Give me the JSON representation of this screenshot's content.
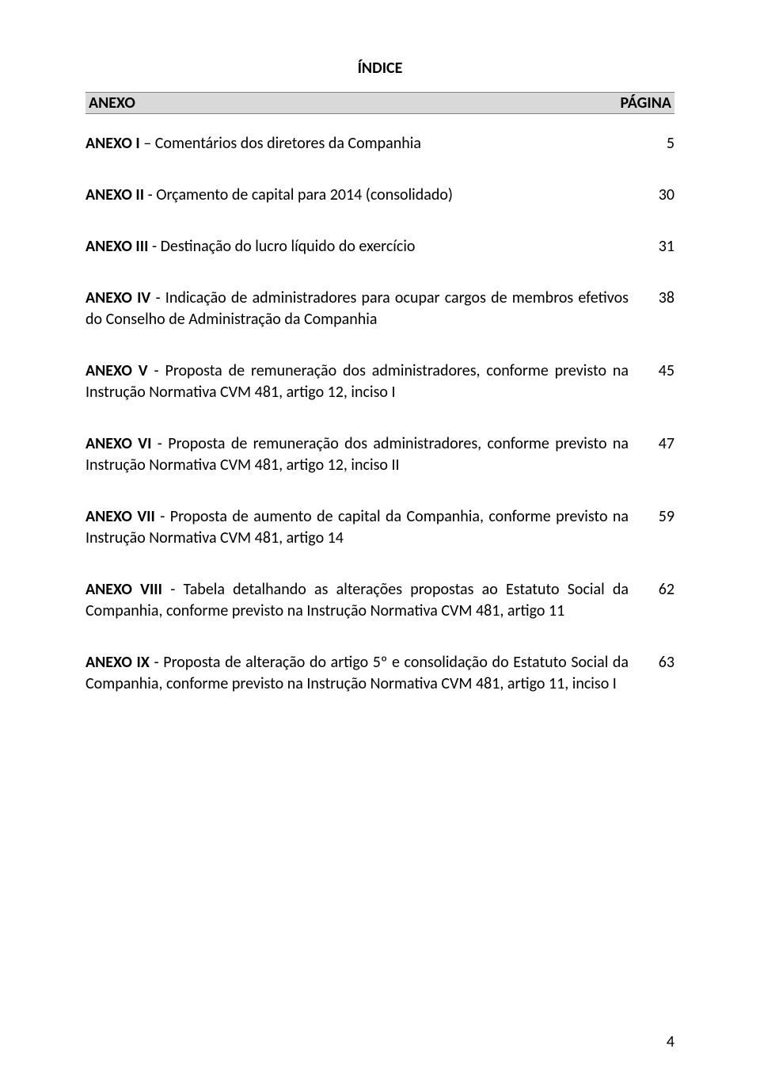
{
  "title": "ÍNDICE",
  "header": {
    "left": "ANEXO",
    "right": "PÁGINA"
  },
  "entries": [
    {
      "bold": "ANEXO I",
      "rest": " – Comentários dos diretores da Companhia",
      "page": "5"
    },
    {
      "bold": "ANEXO II",
      "rest": " - Orçamento de capital para 2014 (consolidado)",
      "page": "30"
    },
    {
      "bold": "ANEXO III",
      "rest": " - Destinação do lucro líquido do exercício",
      "page": "31"
    },
    {
      "bold": "ANEXO IV",
      "rest": " - Indicação de administradores para ocupar cargos de membros efetivos do Conselho de Administração da Companhia",
      "page": "38"
    },
    {
      "bold": "ANEXO V",
      "rest": " - Proposta de remuneração dos administradores, conforme previsto na Instrução Normativa CVM 481, artigo 12, inciso I",
      "page": "45"
    },
    {
      "bold": "ANEXO VI",
      "rest": " - Proposta de remuneração dos administradores, conforme previsto na Instrução Normativa CVM 481, artigo 12, inciso II",
      "page": "47"
    },
    {
      "bold": "ANEXO VII",
      "rest": " - Proposta de aumento de capital da Companhia, conforme previsto na Instrução Normativa CVM 481, artigo 14",
      "page": "59"
    },
    {
      "bold": "ANEXO VIII",
      "rest": " - Tabela detalhando as alterações propostas ao Estatuto Social da Companhia, conforme previsto na Instrução Normativa CVM 481, artigo 11",
      "page": "62"
    },
    {
      "bold": "ANEXO IX",
      "rest": " - Proposta de alteração do artigo 5º e consolidação do Estatuto Social da Companhia, conforme previsto na Instrução Normativa CVM 481, artigo 11,  inciso I",
      "page": "63"
    }
  ],
  "pageNumber": "4",
  "colors": {
    "headerBg": "#d9d9d9",
    "headerBorder": "#808080",
    "text": "#000000",
    "background": "#ffffff"
  },
  "typography": {
    "titleSize": 20,
    "bodySize": 20,
    "family": "Calibri"
  }
}
